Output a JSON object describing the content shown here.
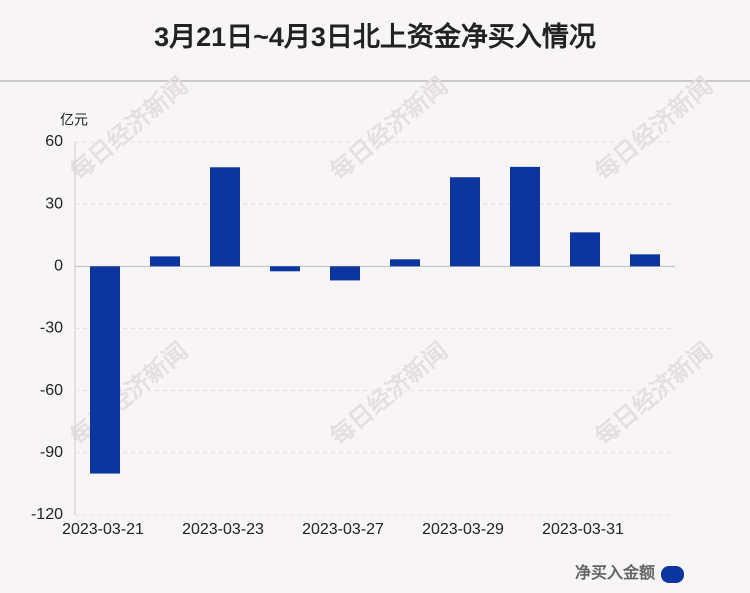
{
  "chart_data": {
    "type": "bar",
    "title": "3月21日~4月3日北上资金净买入情况",
    "y_label": "亿元",
    "watermark": "每日经济新闻",
    "categories": [
      "2023-03-21",
      null,
      "2023-03-23",
      null,
      "2023-03-27",
      null,
      "2023-03-29",
      null,
      "2023-03-31",
      null
    ],
    "series": [
      {
        "name": "净买入金额",
        "color": "#0d35a0",
        "values": [
          -100,
          4.8,
          47.8,
          -2.4,
          -6.8,
          3.4,
          43,
          48,
          16.4,
          5.8
        ]
      }
    ],
    "ylim": [
      -120,
      60
    ],
    "yticks": [
      -120,
      -90,
      -60,
      -30,
      0,
      30,
      60
    ],
    "grid": true,
    "legend": "bottom-right"
  }
}
